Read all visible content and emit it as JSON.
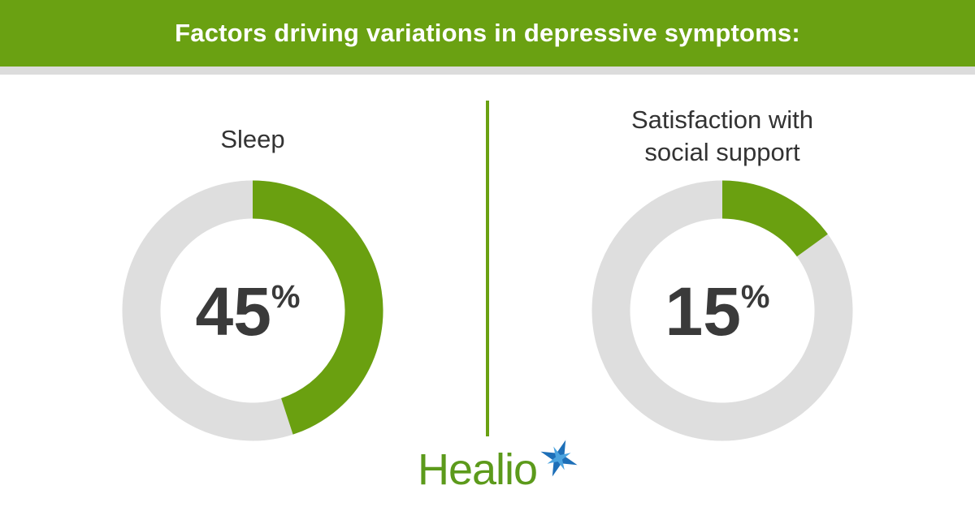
{
  "title": "Factors driving variations in depressive symptoms:",
  "brand": "Healio",
  "chart_data": [
    {
      "type": "donut",
      "title": "Sleep",
      "values": [
        45
      ],
      "value_labels": [
        "45%"
      ],
      "color": "#6aa010",
      "track_color": "#dedede"
    },
    {
      "type": "donut",
      "title": "Satisfaction with social support",
      "values": [
        15
      ],
      "value_labels": [
        "15%"
      ],
      "color": "#6aa010",
      "track_color": "#dedede"
    }
  ]
}
